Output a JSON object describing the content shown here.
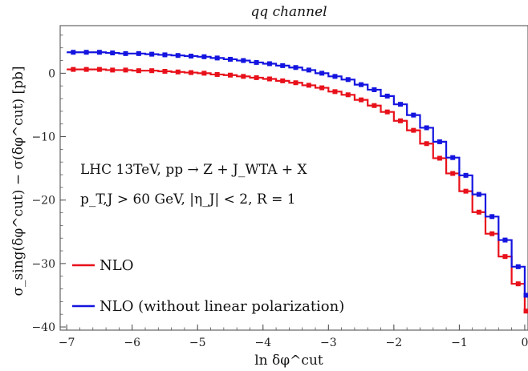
{
  "chart_data": {
    "type": "line",
    "title": "qq channel",
    "xlabel": "ln δφ^cut",
    "ylabel": "σ_sing(δφ^cut) − σ(δφ^cut) [pb]",
    "xlim": [
      -7.1,
      0.05
    ],
    "ylim": [
      -40.5,
      7.5
    ],
    "xticks": [
      -7,
      -6,
      -5,
      -4,
      -3,
      -2,
      -1,
      0
    ],
    "yticks": [
      0,
      -10,
      -20,
      -30,
      -40
    ],
    "grid": false,
    "x_edges": [
      -7.0,
      -6.8,
      -6.6,
      -6.4,
      -6.2,
      -6.0,
      -5.8,
      -5.6,
      -5.4,
      -5.2,
      -5.0,
      -4.8,
      -4.6,
      -4.4,
      -4.2,
      -4.0,
      -3.8,
      -3.6,
      -3.4,
      -3.2,
      -3.0,
      -2.8,
      -2.6,
      -2.4,
      -2.2,
      -2.0,
      -1.8,
      -1.6,
      -1.4,
      -1.2,
      -1.0,
      -0.8,
      -0.6,
      -0.4,
      -0.2,
      0.0
    ],
    "series": [
      {
        "name": "NLO",
        "color": "#e8101a",
        "values": [
          0.6,
          0.6,
          0.6,
          0.5,
          0.5,
          0.4,
          0.4,
          0.3,
          0.2,
          0.1,
          0.0,
          -0.2,
          -0.3,
          -0.5,
          -0.7,
          -0.9,
          -1.2,
          -1.5,
          -1.9,
          -2.3,
          -2.9,
          -3.4,
          -4.2,
          -5.1,
          -6.1,
          -7.5,
          -9.0,
          -11.1,
          -13.4,
          -15.8,
          -18.6,
          -21.9,
          -25.3,
          -28.9,
          -33.2,
          -37.5
        ]
      },
      {
        "name": "NLO (without linear polarization)",
        "color": "#1414e0",
        "values": [
          3.3,
          3.3,
          3.3,
          3.2,
          3.1,
          3.1,
          3.0,
          2.9,
          2.8,
          2.7,
          2.6,
          2.4,
          2.2,
          2.0,
          1.7,
          1.5,
          1.2,
          0.9,
          0.5,
          0.0,
          -0.5,
          -1.0,
          -1.8,
          -2.6,
          -3.6,
          -4.9,
          -6.6,
          -8.6,
          -10.8,
          -13.3,
          -16.1,
          -19.1,
          -22.6,
          -26.3,
          -30.5,
          -35.0
        ]
      }
    ],
    "annotations": [
      "LHC 13TeV,  pp → Z + J_WTA + X",
      "p_T,J > 60 GeV,  |η_J| < 2,  R = 1"
    ],
    "legend_position": "bottom-left"
  }
}
